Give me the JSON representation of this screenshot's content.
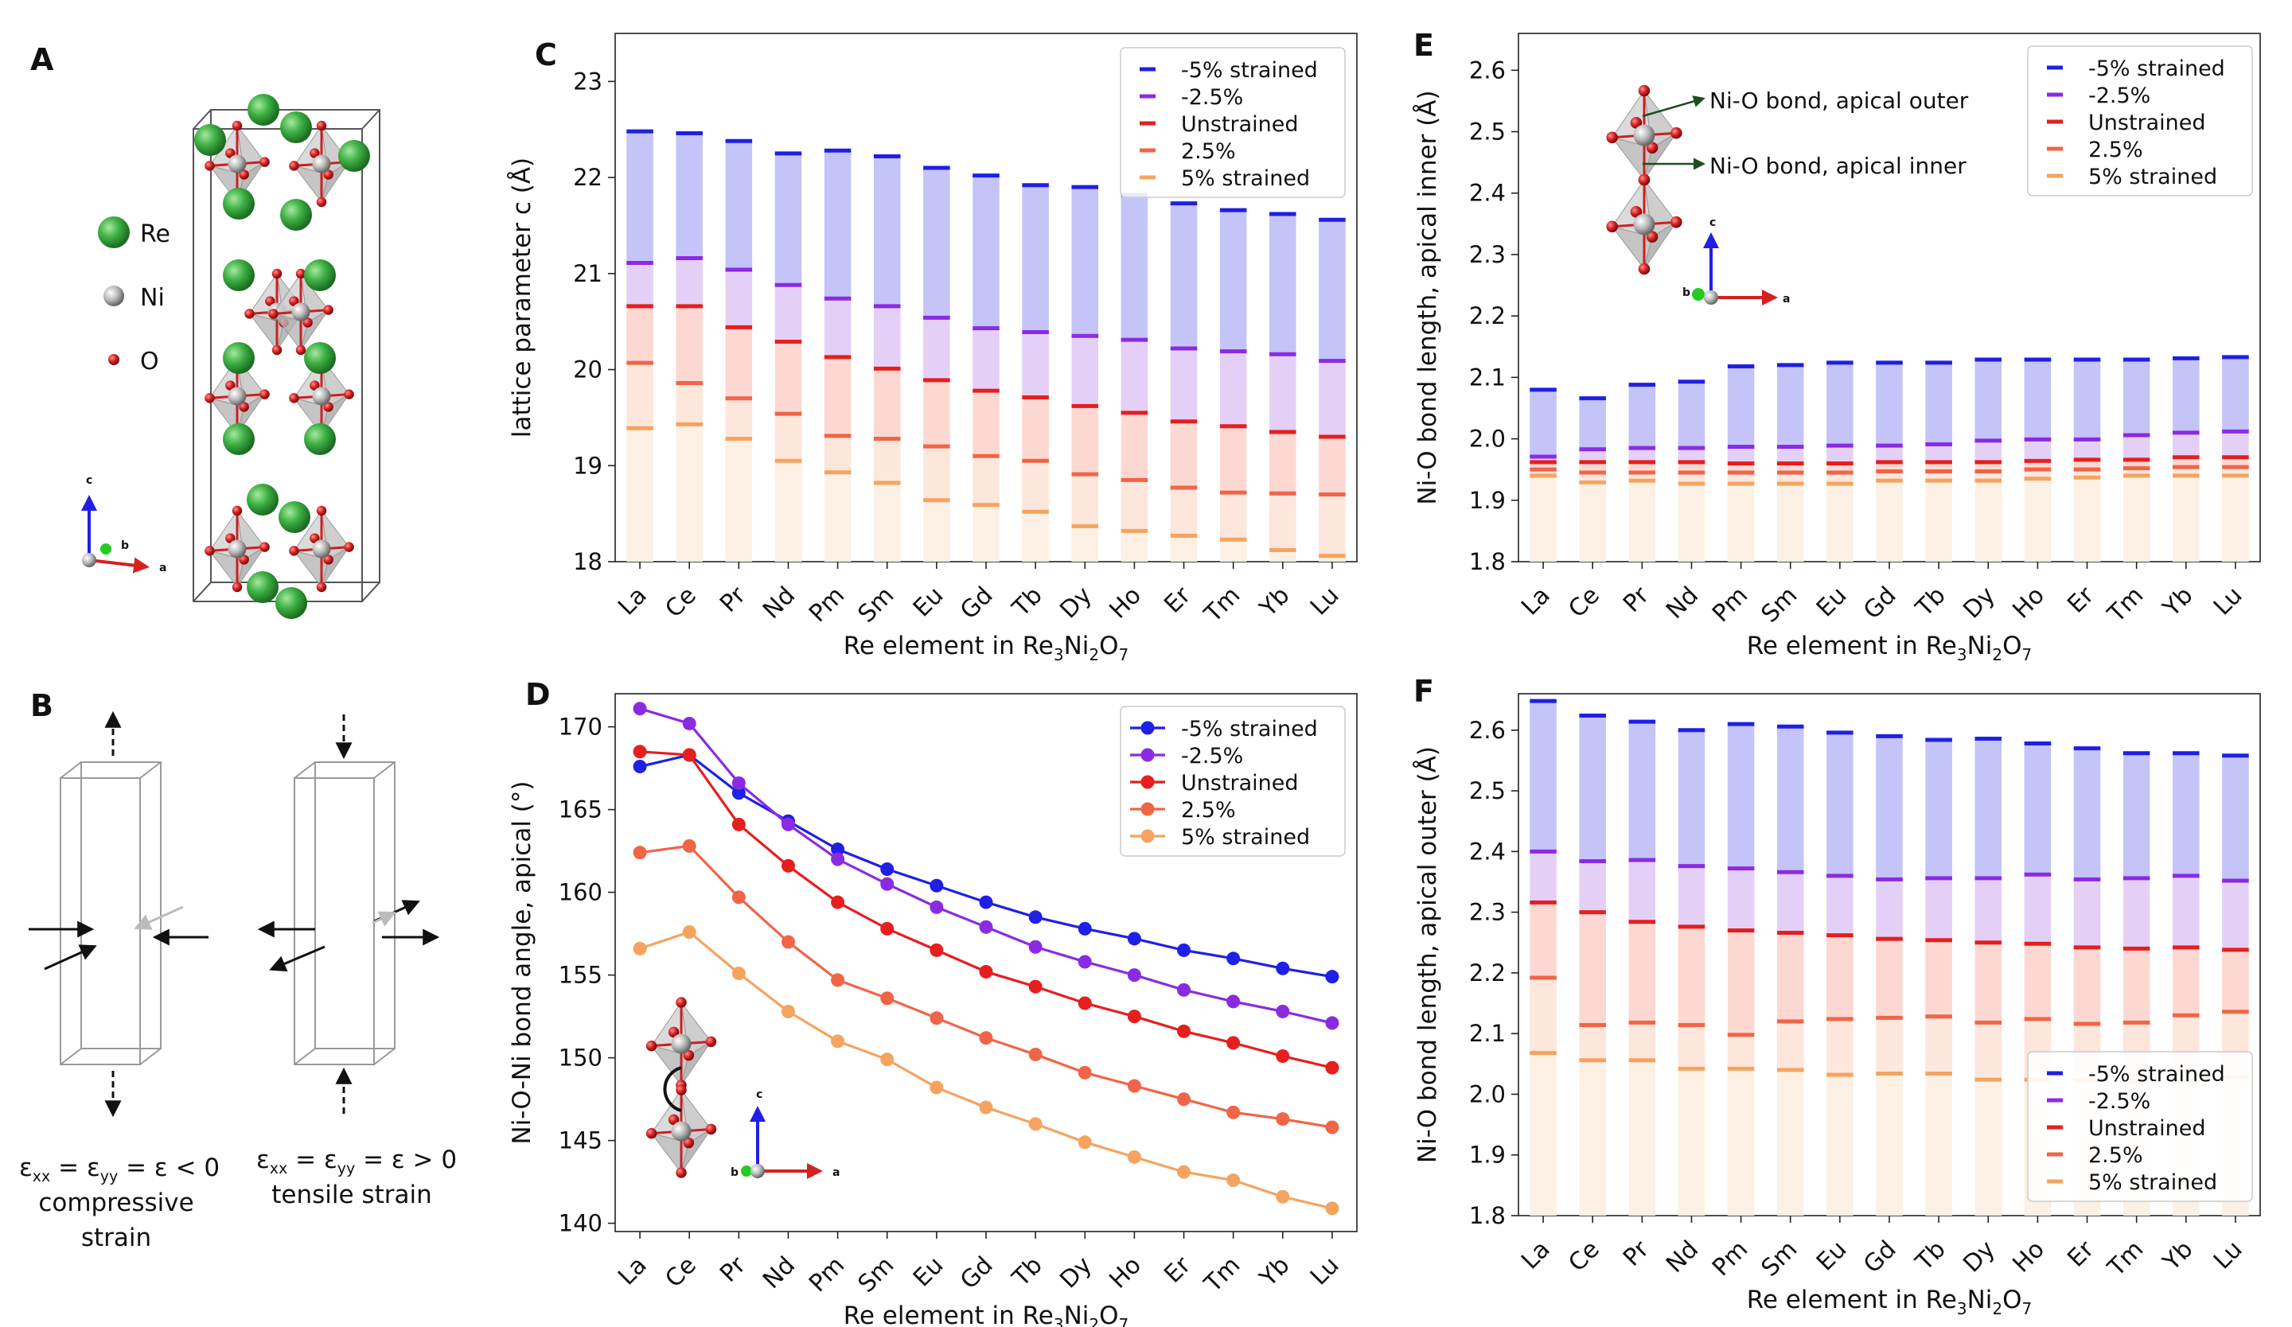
{
  "colors": {
    "s_m5": "#1f1fe6",
    "s_m25": "#8a2be2",
    "s_0": "#e61e1e",
    "s_p25": "#f06448",
    "s_p5": "#f4a460",
    "re_atom": "#3cb043",
    "ni_atom": "#b8b8b8",
    "o_atom": "#d42020",
    "axis_a": "#d42020",
    "axis_b": "#22cc22",
    "axis_c": "#1f1fe6"
  },
  "panel_labels": {
    "A": "A",
    "B": "B",
    "C": "C",
    "D": "D",
    "E": "E",
    "F": "F"
  },
  "panel_a": {
    "legend": [
      {
        "symbol": "Re",
        "icon": "green-sphere"
      },
      {
        "symbol": "Ni",
        "icon": "grey-sphere"
      },
      {
        "symbol": "O",
        "icon": "red-sphere"
      }
    ],
    "axes": {
      "a": "a",
      "b": "b",
      "c": "c"
    }
  },
  "panel_b": {
    "left": {
      "equation": "εxx = εyy = ε < 0",
      "eq_sub1": "xx",
      "eq_sub2": "yy",
      "line2": "compressive",
      "line3": "strain",
      "condition": "< 0"
    },
    "right": {
      "equation": "εxx = εyy = ε > 0",
      "eq_sub1": "xx",
      "eq_sub2": "yy",
      "line2": "tensile strain",
      "condition": "> 0"
    }
  },
  "xlabel": {
    "prefix": "Re element in Re",
    "sub1": "3",
    "mid": "Ni",
    "sub2": "2",
    "mid2": "O",
    "sub3": "7"
  },
  "inset_d_axes": {
    "a": "a",
    "b": "b",
    "c": "c"
  },
  "inset_e": {
    "label_outer": "Ni-O bond, apical outer",
    "label_inner": "Ni-O bond, apical inner",
    "a": "a",
    "b": "b",
    "c": "c"
  },
  "chart_data": [
    {
      "id": "C",
      "type": "bar",
      "title": "",
      "ylabel": "lattice parameter c (Å)",
      "xlabel": "Re element in Re3Ni2O7",
      "categories": [
        "La",
        "Ce",
        "Pr",
        "Nd",
        "Pm",
        "Sm",
        "Eu",
        "Gd",
        "Tb",
        "Dy",
        "Ho",
        "Er",
        "Tm",
        "Yb",
        "Lu"
      ],
      "ylim": [
        18,
        23.5
      ],
      "yticks": [
        18,
        19,
        20,
        21,
        22,
        23
      ],
      "legend_position": "top-right",
      "series": [
        {
          "name": "-5% strained",
          "values": [
            22.48,
            22.46,
            22.38,
            22.25,
            22.28,
            22.22,
            22.1,
            22.02,
            21.92,
            21.9,
            21.82,
            21.73,
            21.66,
            21.62,
            21.56
          ]
        },
        {
          "name": "-2.5%",
          "values": [
            21.11,
            21.16,
            21.04,
            20.88,
            20.74,
            20.66,
            20.54,
            20.43,
            20.39,
            20.35,
            20.31,
            20.22,
            20.19,
            20.16,
            20.09
          ]
        },
        {
          "name": "Unstrained",
          "values": [
            20.66,
            20.66,
            20.44,
            20.29,
            20.13,
            20.01,
            19.89,
            19.78,
            19.71,
            19.62,
            19.55,
            19.46,
            19.41,
            19.35,
            19.3
          ]
        },
        {
          "name": "2.5%",
          "values": [
            20.07,
            19.86,
            19.7,
            19.54,
            19.31,
            19.28,
            19.2,
            19.1,
            19.05,
            18.91,
            18.85,
            18.77,
            18.72,
            18.71,
            18.7
          ]
        },
        {
          "name": "5% strained",
          "values": [
            19.39,
            19.43,
            19.28,
            19.05,
            18.93,
            18.82,
            18.64,
            18.59,
            18.52,
            18.37,
            18.32,
            18.27,
            18.23,
            18.12,
            18.06
          ]
        }
      ]
    },
    {
      "id": "D",
      "type": "line",
      "title": "",
      "ylabel": "Ni-O-Ni bond angle, apical (°)",
      "xlabel": "Re element in Re3Ni2O7",
      "categories": [
        "La",
        "Ce",
        "Pr",
        "Nd",
        "Pm",
        "Sm",
        "Eu",
        "Gd",
        "Tb",
        "Dy",
        "Ho",
        "Er",
        "Tm",
        "Yb",
        "Lu"
      ],
      "ylim": [
        139.5,
        172
      ],
      "yticks": [
        140,
        145,
        150,
        155,
        160,
        165,
        170
      ],
      "legend_position": "top-right",
      "series": [
        {
          "name": "-5% strained",
          "values": [
            167.6,
            168.3,
            166.0,
            164.3,
            162.6,
            161.4,
            160.4,
            159.4,
            158.5,
            157.8,
            157.2,
            156.5,
            156.0,
            155.4,
            154.9
          ]
        },
        {
          "name": "-2.5%",
          "values": [
            171.1,
            170.2,
            166.6,
            164.1,
            162.0,
            160.5,
            159.1,
            157.9,
            156.7,
            155.8,
            155.0,
            154.1,
            153.4,
            152.8,
            152.1
          ]
        },
        {
          "name": "Unstrained",
          "values": [
            168.5,
            168.3,
            164.1,
            161.6,
            159.4,
            157.8,
            156.5,
            155.2,
            154.3,
            153.3,
            152.5,
            151.6,
            150.9,
            150.1,
            149.4
          ]
        },
        {
          "name": "2.5%",
          "values": [
            162.4,
            162.8,
            159.7,
            157.0,
            154.7,
            153.6,
            152.4,
            151.2,
            150.2,
            149.1,
            148.3,
            147.5,
            146.7,
            146.3,
            145.8
          ]
        },
        {
          "name": "5% strained",
          "values": [
            156.6,
            157.6,
            155.1,
            152.8,
            151.0,
            149.9,
            148.2,
            147.0,
            146.0,
            144.9,
            144.0,
            143.1,
            142.6,
            141.6,
            140.9
          ]
        }
      ]
    },
    {
      "id": "E",
      "type": "bar",
      "title": "",
      "ylabel": "Ni-O bond length, apical inner (Å)",
      "xlabel": "Re element in Re3Ni2O7",
      "categories": [
        "La",
        "Ce",
        "Pr",
        "Nd",
        "Pm",
        "Sm",
        "Eu",
        "Gd",
        "Tb",
        "Dy",
        "Ho",
        "Er",
        "Tm",
        "Yb",
        "Lu"
      ],
      "ylim": [
        1.8,
        2.66
      ],
      "yticks": [
        1.8,
        1.9,
        2.0,
        2.1,
        2.2,
        2.3,
        2.4,
        2.5,
        2.6
      ],
      "legend_position": "top-right",
      "series": [
        {
          "name": "-5% strained",
          "values": [
            2.08,
            2.066,
            2.088,
            2.093,
            2.118,
            2.12,
            2.124,
            2.124,
            2.124,
            2.129,
            2.129,
            2.129,
            2.129,
            2.131,
            2.133
          ]
        },
        {
          "name": "-2.5%",
          "values": [
            1.971,
            1.983,
            1.985,
            1.985,
            1.987,
            1.987,
            1.989,
            1.989,
            1.991,
            1.997,
            1.999,
            1.999,
            2.006,
            2.01,
            2.012
          ]
        },
        {
          "name": "Unstrained",
          "values": [
            1.962,
            1.962,
            1.962,
            1.962,
            1.96,
            1.96,
            1.96,
            1.962,
            1.962,
            1.962,
            1.964,
            1.966,
            1.966,
            1.97,
            1.97
          ]
        },
        {
          "name": "2.5%",
          "values": [
            1.95,
            1.945,
            1.945,
            1.945,
            1.945,
            1.945,
            1.945,
            1.947,
            1.947,
            1.947,
            1.95,
            1.95,
            1.952,
            1.954,
            1.954
          ]
        },
        {
          "name": "5% strained",
          "values": [
            1.94,
            1.929,
            1.932,
            1.927,
            1.927,
            1.927,
            1.927,
            1.932,
            1.932,
            1.932,
            1.935,
            1.937,
            1.94,
            1.94,
            1.94
          ]
        }
      ]
    },
    {
      "id": "F",
      "type": "bar",
      "title": "",
      "ylabel": "Ni-O bond length, apical outer (Å)",
      "xlabel": "Re element in Re3Ni2O7",
      "categories": [
        "La",
        "Ce",
        "Pr",
        "Nd",
        "Pm",
        "Sm",
        "Eu",
        "Gd",
        "Tb",
        "Dy",
        "Ho",
        "Er",
        "Tm",
        "Yb",
        "Lu"
      ],
      "ylim": [
        1.8,
        2.66
      ],
      "yticks": [
        1.8,
        1.9,
        2.0,
        2.1,
        2.2,
        2.3,
        2.4,
        2.5,
        2.6
      ],
      "legend_position": "bottom-right",
      "series": [
        {
          "name": "-5% strained",
          "values": [
            2.648,
            2.624,
            2.614,
            2.6,
            2.61,
            2.606,
            2.596,
            2.59,
            2.584,
            2.586,
            2.578,
            2.57,
            2.562,
            2.562,
            2.558
          ]
        },
        {
          "name": "-2.5%",
          "values": [
            2.4,
            2.384,
            2.386,
            2.376,
            2.372,
            2.366,
            2.36,
            2.354,
            2.356,
            2.356,
            2.362,
            2.354,
            2.356,
            2.36,
            2.352
          ]
        },
        {
          "name": "Unstrained",
          "values": [
            2.316,
            2.3,
            2.284,
            2.276,
            2.27,
            2.266,
            2.262,
            2.256,
            2.254,
            2.25,
            2.248,
            2.242,
            2.24,
            2.242,
            2.238
          ]
        },
        {
          "name": "2.5%",
          "values": [
            2.192,
            2.114,
            2.118,
            2.114,
            2.098,
            2.12,
            2.124,
            2.126,
            2.128,
            2.118,
            2.124,
            2.116,
            2.118,
            2.13,
            2.136
          ]
        },
        {
          "name": "5% strained",
          "values": [
            2.068,
            2.056,
            2.056,
            2.042,
            2.042,
            2.04,
            2.032,
            2.034,
            2.034,
            2.024,
            2.024,
            2.022,
            2.02,
            2.022,
            2.028
          ]
        }
      ]
    }
  ]
}
